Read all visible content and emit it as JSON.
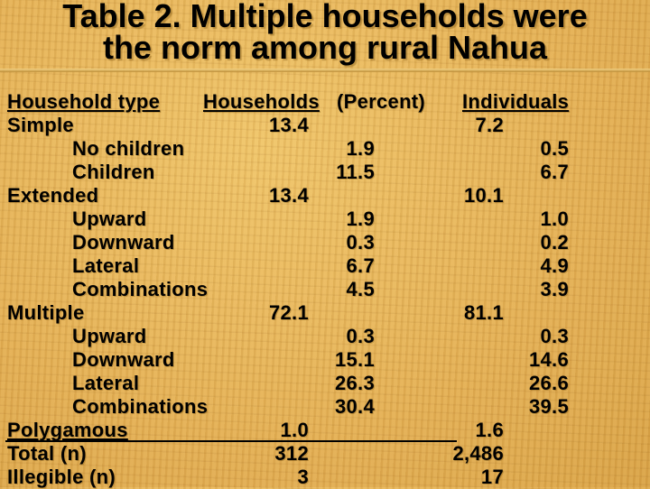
{
  "title": {
    "line1": "Table 2. Multiple households were",
    "line2": "the norm among rural Nahua"
  },
  "headers": {
    "type": "Household type",
    "households": "Households",
    "percent": "(Percent)",
    "individuals": "Individuals"
  },
  "rows": [
    {
      "label": "Simple",
      "hh_main": "13.4",
      "hh_sub": "",
      "ind_main": "7.2",
      "ind_sub": ""
    },
    {
      "label": "No children",
      "hh_main": "",
      "hh_sub": "1.9",
      "ind_main": "",
      "ind_sub": "0.5"
    },
    {
      "label": "Children",
      "hh_main": "",
      "hh_sub": "11.5",
      "ind_main": "",
      "ind_sub": "6.7"
    },
    {
      "label": "Extended",
      "hh_main": "13.4",
      "hh_sub": "",
      "ind_main": "10.1",
      "ind_sub": ""
    },
    {
      "label": "Upward",
      "hh_main": "",
      "hh_sub": "1.9",
      "ind_main": "",
      "ind_sub": "1.0"
    },
    {
      "label": "Downward",
      "hh_main": "",
      "hh_sub": "0.3",
      "ind_main": "",
      "ind_sub": "0.2"
    },
    {
      "label": "Lateral",
      "hh_main": "",
      "hh_sub": "6.7",
      "ind_main": "",
      "ind_sub": "4.9"
    },
    {
      "label": "Combinations",
      "hh_main": "",
      "hh_sub": "4.5",
      "ind_main": "",
      "ind_sub": "3.9"
    },
    {
      "label": "Multiple",
      "hh_main": "72.1",
      "hh_sub": "",
      "ind_main": "81.1",
      "ind_sub": ""
    },
    {
      "label": "Upward",
      "hh_main": "",
      "hh_sub": "0.3",
      "ind_main": "",
      "ind_sub": "0.3"
    },
    {
      "label": "Downward",
      "hh_main": "",
      "hh_sub": "15.1",
      "ind_main": "",
      "ind_sub": "14.6"
    },
    {
      "label": "Lateral",
      "hh_main": "",
      "hh_sub": "26.3",
      "ind_main": "",
      "ind_sub": "26.6"
    },
    {
      "label": "Combinations",
      "hh_main": "",
      "hh_sub": "30.4",
      "ind_main": "",
      "ind_sub": "39.5"
    },
    {
      "label": "Polygamous",
      "hh_main": "1.0",
      "hh_sub": "",
      "ind_main": "1.6",
      "ind_sub": ""
    },
    {
      "label": "Total (n)",
      "hh_main": "312",
      "hh_sub": "",
      "ind_main": "2,486",
      "ind_sub": ""
    },
    {
      "label": "Illegible (n)",
      "hh_main": "3",
      "hh_sub": "",
      "ind_main": "17",
      "ind_sub": ""
    }
  ]
}
